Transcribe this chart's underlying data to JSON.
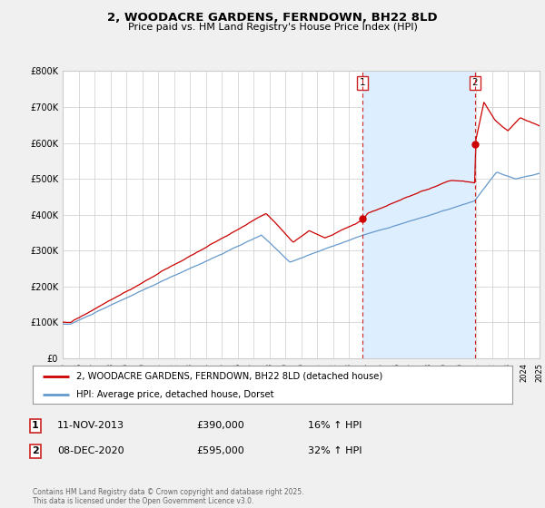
{
  "title": "2, WOODACRE GARDENS, FERNDOWN, BH22 8LD",
  "subtitle": "Price paid vs. HM Land Registry's House Price Index (HPI)",
  "legend_line1": "2, WOODACRE GARDENS, FERNDOWN, BH22 8LD (detached house)",
  "legend_line2": "HPI: Average price, detached house, Dorset",
  "transaction1_date": "11-NOV-2013",
  "transaction1_price": 390000,
  "transaction1_hpi_pct": "16% ↑ HPI",
  "transaction2_date": "08-DEC-2020",
  "transaction2_price": 595000,
  "transaction2_hpi_pct": "32% ↑ HPI",
  "footer": "Contains HM Land Registry data © Crown copyright and database right 2025.\nThis data is licensed under the Open Government Licence v3.0.",
  "background_color": "#f0f0f0",
  "plot_bg_color": "#ffffff",
  "red_line_color": "#cc0000",
  "blue_line_color": "#6699cc",
  "shade_color": "#ddeeff",
  "dashed_color": "#cc2222",
  "xmin": 1995,
  "xmax": 2025,
  "ymin": 0,
  "ymax": 800000,
  "yticks": [
    0,
    100000,
    200000,
    300000,
    400000,
    500000,
    600000,
    700000,
    800000
  ],
  "ytick_labels": [
    "£0",
    "£100K",
    "£200K",
    "£300K",
    "£400K",
    "£500K",
    "£600K",
    "£700K",
    "£800K"
  ],
  "transaction1_x": 2013.87,
  "transaction2_x": 2020.92
}
